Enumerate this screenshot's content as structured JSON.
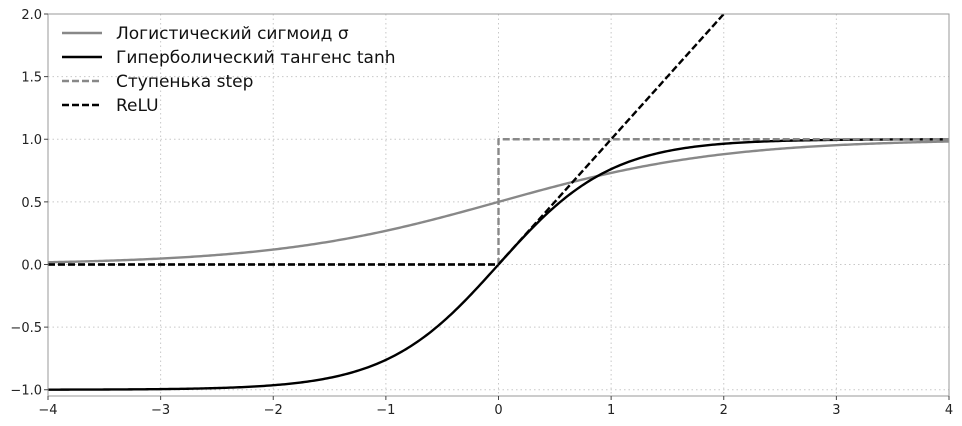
{
  "chart_data": {
    "type": "line",
    "title": "",
    "xlabel": "",
    "ylabel": "",
    "xlim": [
      -4,
      4
    ],
    "ylim": [
      -1.05,
      2.0
    ],
    "xticks": [
      -4,
      -3,
      -2,
      -1,
      0,
      1,
      2,
      3,
      4
    ],
    "yticks": [
      -1.0,
      -0.5,
      0.0,
      0.5,
      1.0,
      1.5,
      2.0
    ],
    "xtick_labels": [
      "−4",
      "−3",
      "−2",
      "−1",
      "0",
      "1",
      "2",
      "3",
      "4"
    ],
    "ytick_labels": [
      "−1.0",
      "−0.5",
      "0.0",
      "0.5",
      "1.0",
      "1.5",
      "2.0"
    ],
    "grid": true,
    "legend_position": "top-left",
    "series": [
      {
        "name": "Логистический сигмоид σ",
        "function": "sigmoid",
        "color": "#888888",
        "dash": "solid"
      },
      {
        "name": "Гиперболический тангенс tanh",
        "function": "tanh",
        "color": "#000000",
        "dash": "solid"
      },
      {
        "name": "Ступенька step",
        "function": "step",
        "color": "#888888",
        "dash": "dashed"
      },
      {
        "name": "ReLU",
        "function": "relu",
        "color": "#000000",
        "dash": "dashed"
      }
    ]
  }
}
